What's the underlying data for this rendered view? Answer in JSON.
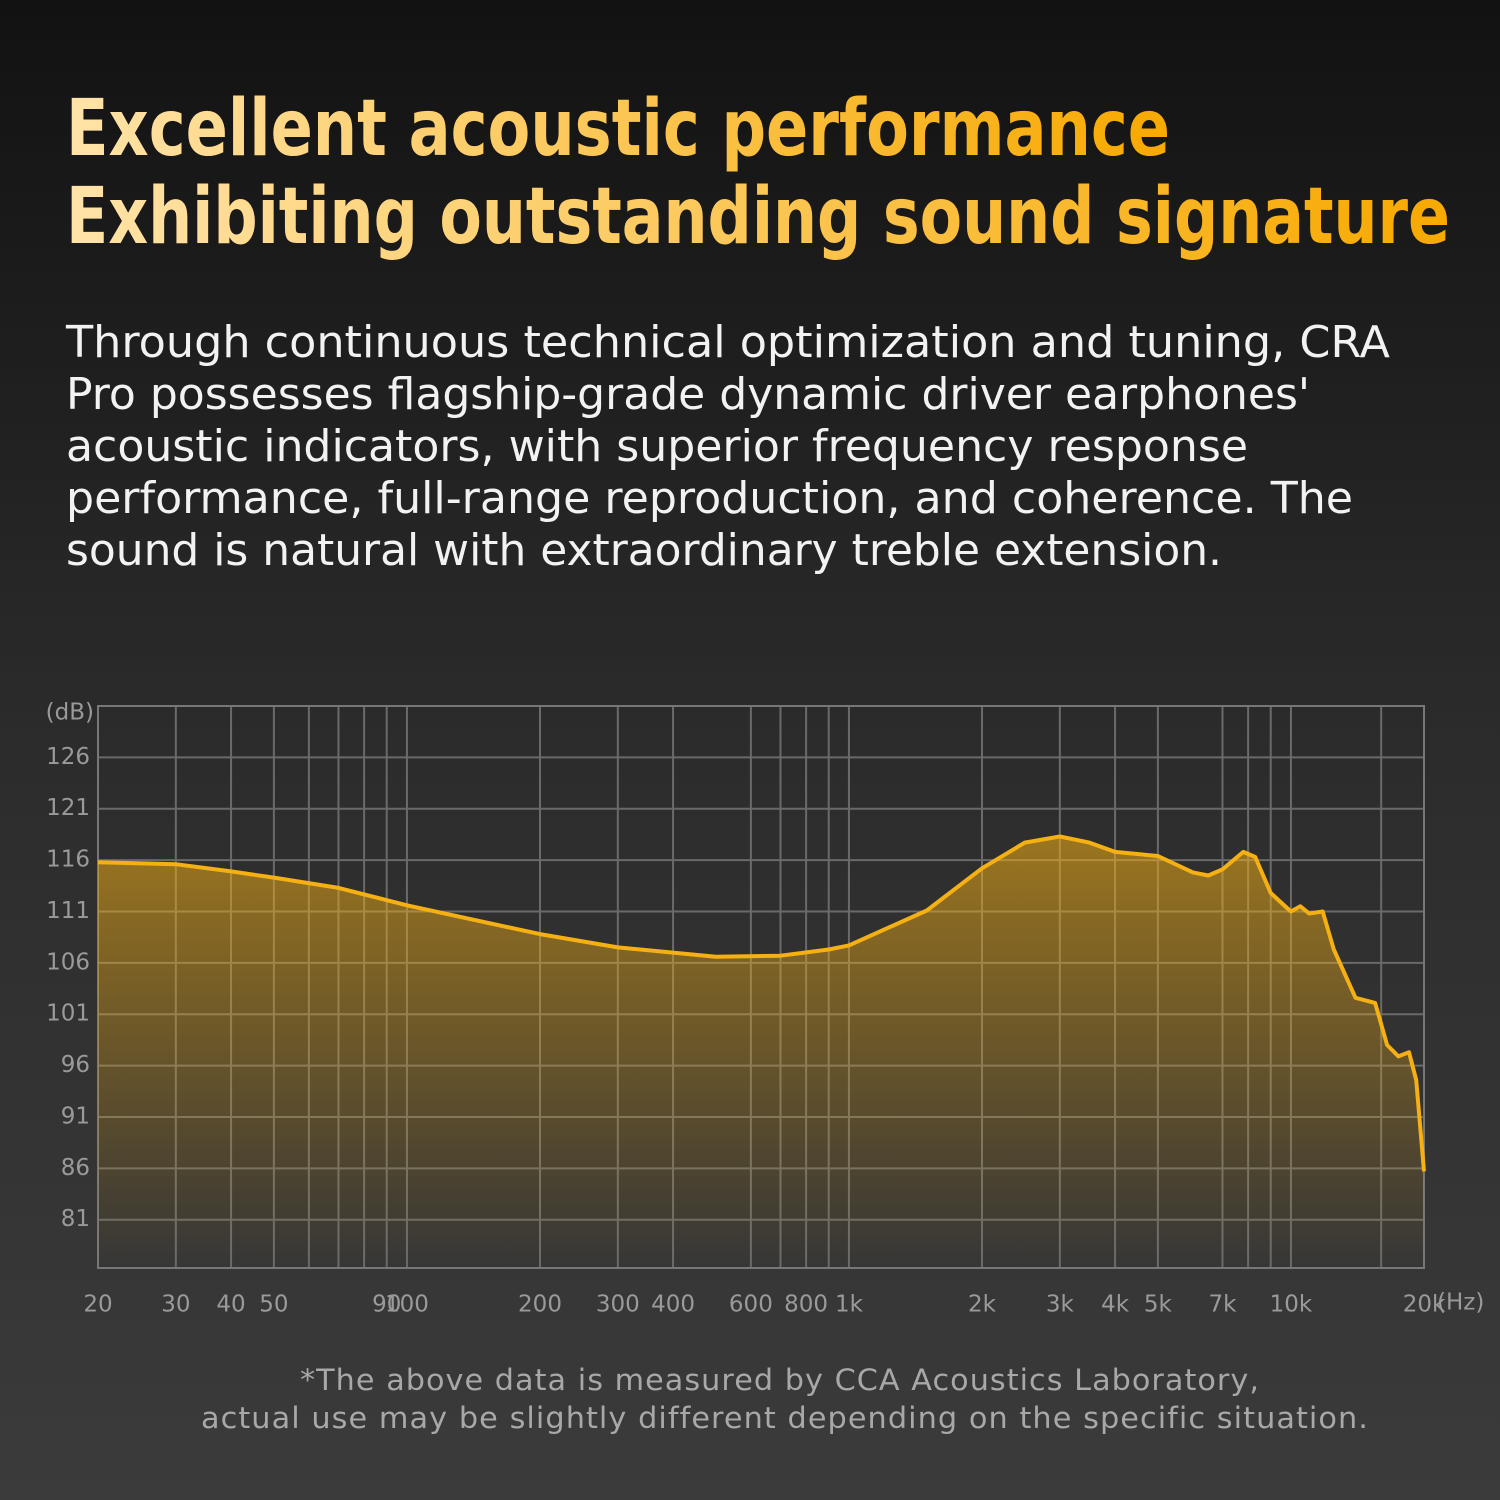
{
  "header": {
    "title_lines": [
      "Excellent acoustic performance",
      "Exhibiting outstanding sound signature"
    ],
    "body_lines": [
      "Through continuous technical optimization and tuning, CRA",
      "Pro possesses flagship-grade dynamic driver earphones'",
      "acoustic indicators, with superior frequency response",
      "performance, full-range reproduction, and coherence. The",
      "sound is natural with extraordinary treble extension."
    ]
  },
  "chart_data": {
    "type": "line",
    "y_unit": "(dB)",
    "x_unit": "(Hz)",
    "xscale": "log",
    "color": "#f5b014",
    "grid": true,
    "x": [
      20,
      30,
      40,
      50,
      70,
      100,
      200,
      300,
      500,
      700,
      900,
      1000,
      1500,
      2000,
      2500,
      3000,
      3500,
      4000,
      5000,
      6000,
      6500,
      7000,
      7800,
      8300,
      9000,
      10000,
      10500,
      11000,
      11800,
      12500,
      14000,
      15500,
      16500,
      17500,
      18500,
      19200,
      20000
    ],
    "values": [
      115.8,
      115.6,
      114.9,
      114.3,
      113.3,
      111.6,
      108.8,
      107.5,
      106.6,
      106.7,
      107.3,
      107.7,
      111.1,
      115.2,
      117.7,
      118.3,
      117.7,
      116.8,
      116.4,
      114.8,
      114.5,
      115.1,
      116.8,
      116.3,
      112.8,
      111.0,
      111.5,
      110.8,
      111.0,
      107.3,
      102.6,
      102.1,
      98.0,
      96.9,
      97.3,
      94.6,
      85.7
    ],
    "xlim": [
      20,
      20000
    ],
    "ylim": [
      76.3,
      131
    ],
    "yticks": [
      81,
      86,
      91,
      96,
      101,
      106,
      111,
      116,
      121,
      126
    ],
    "xticks": [
      20,
      30,
      40,
      50,
      90,
      100,
      200,
      300,
      400,
      600,
      800,
      {
        "value": 1000,
        "label": "1k"
      },
      {
        "value": 2000,
        "label": "2k"
      },
      {
        "value": 3000,
        "label": "3k"
      },
      {
        "value": 4000,
        "label": "4k"
      },
      {
        "value": 5000,
        "label": "5k"
      },
      {
        "value": 7000,
        "label": "7k"
      },
      {
        "value": 10000,
        "label": "10k"
      },
      {
        "value": 20000,
        "label": "20k"
      }
    ],
    "xminor": [
      60,
      70,
      80,
      700,
      900,
      8000,
      9000,
      16000
    ]
  },
  "footnote_lines": [
    "*The above data is measured by CCA Acoustics Laboratory,",
    "actual use may be slightly different depending on the specific situation."
  ]
}
